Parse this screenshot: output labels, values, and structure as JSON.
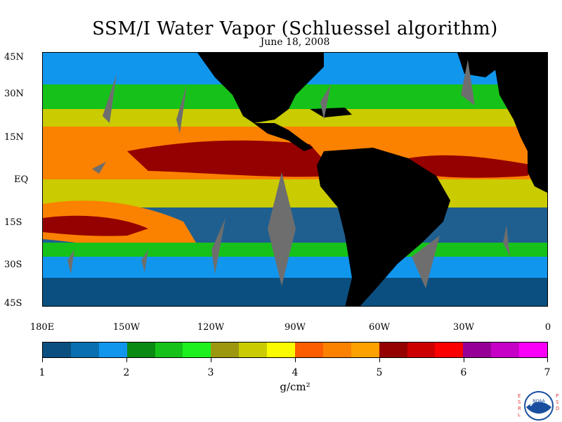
{
  "title": "SSM/I Water Vapor (Schluessel algorithm)",
  "date": "June 18, 2008",
  "lat_labels": [
    "45N",
    "30N",
    "15N",
    "EQ",
    "15S",
    "30S",
    "45S"
  ],
  "lon_labels": [
    "180E",
    "150W",
    "120W",
    "90W",
    "60W",
    "30W",
    "0"
  ],
  "colorbar": {
    "labels": [
      "1",
      "2",
      "3",
      "4",
      "5",
      "6",
      "7"
    ],
    "units": "g/cm²",
    "colors": [
      "#0a4f7f",
      "#0a6fb0",
      "#1196ee",
      "#0a8a12",
      "#16c21a",
      "#1ef01f",
      "#9b9810",
      "#cacb00",
      "#fbfb00",
      "#fb5d00",
      "#fb8100",
      "#fba100",
      "#950000",
      "#cd0000",
      "#fa0000",
      "#960096",
      "#c700c8",
      "#fa00f8"
    ]
  },
  "map_colors": {
    "land": "#000000",
    "no_data": "#6e6e6e",
    "ocean_dry": "#0a4f7f",
    "ocean_mid": "#1196ee",
    "moist_green": "#16c21a",
    "moist_yellow": "#cacb00",
    "moist_orange": "#fb8100",
    "moist_red": "#950000"
  },
  "logo": {
    "left_text": "ESRL",
    "right_text": "PSD",
    "emblem": "NOAA"
  }
}
